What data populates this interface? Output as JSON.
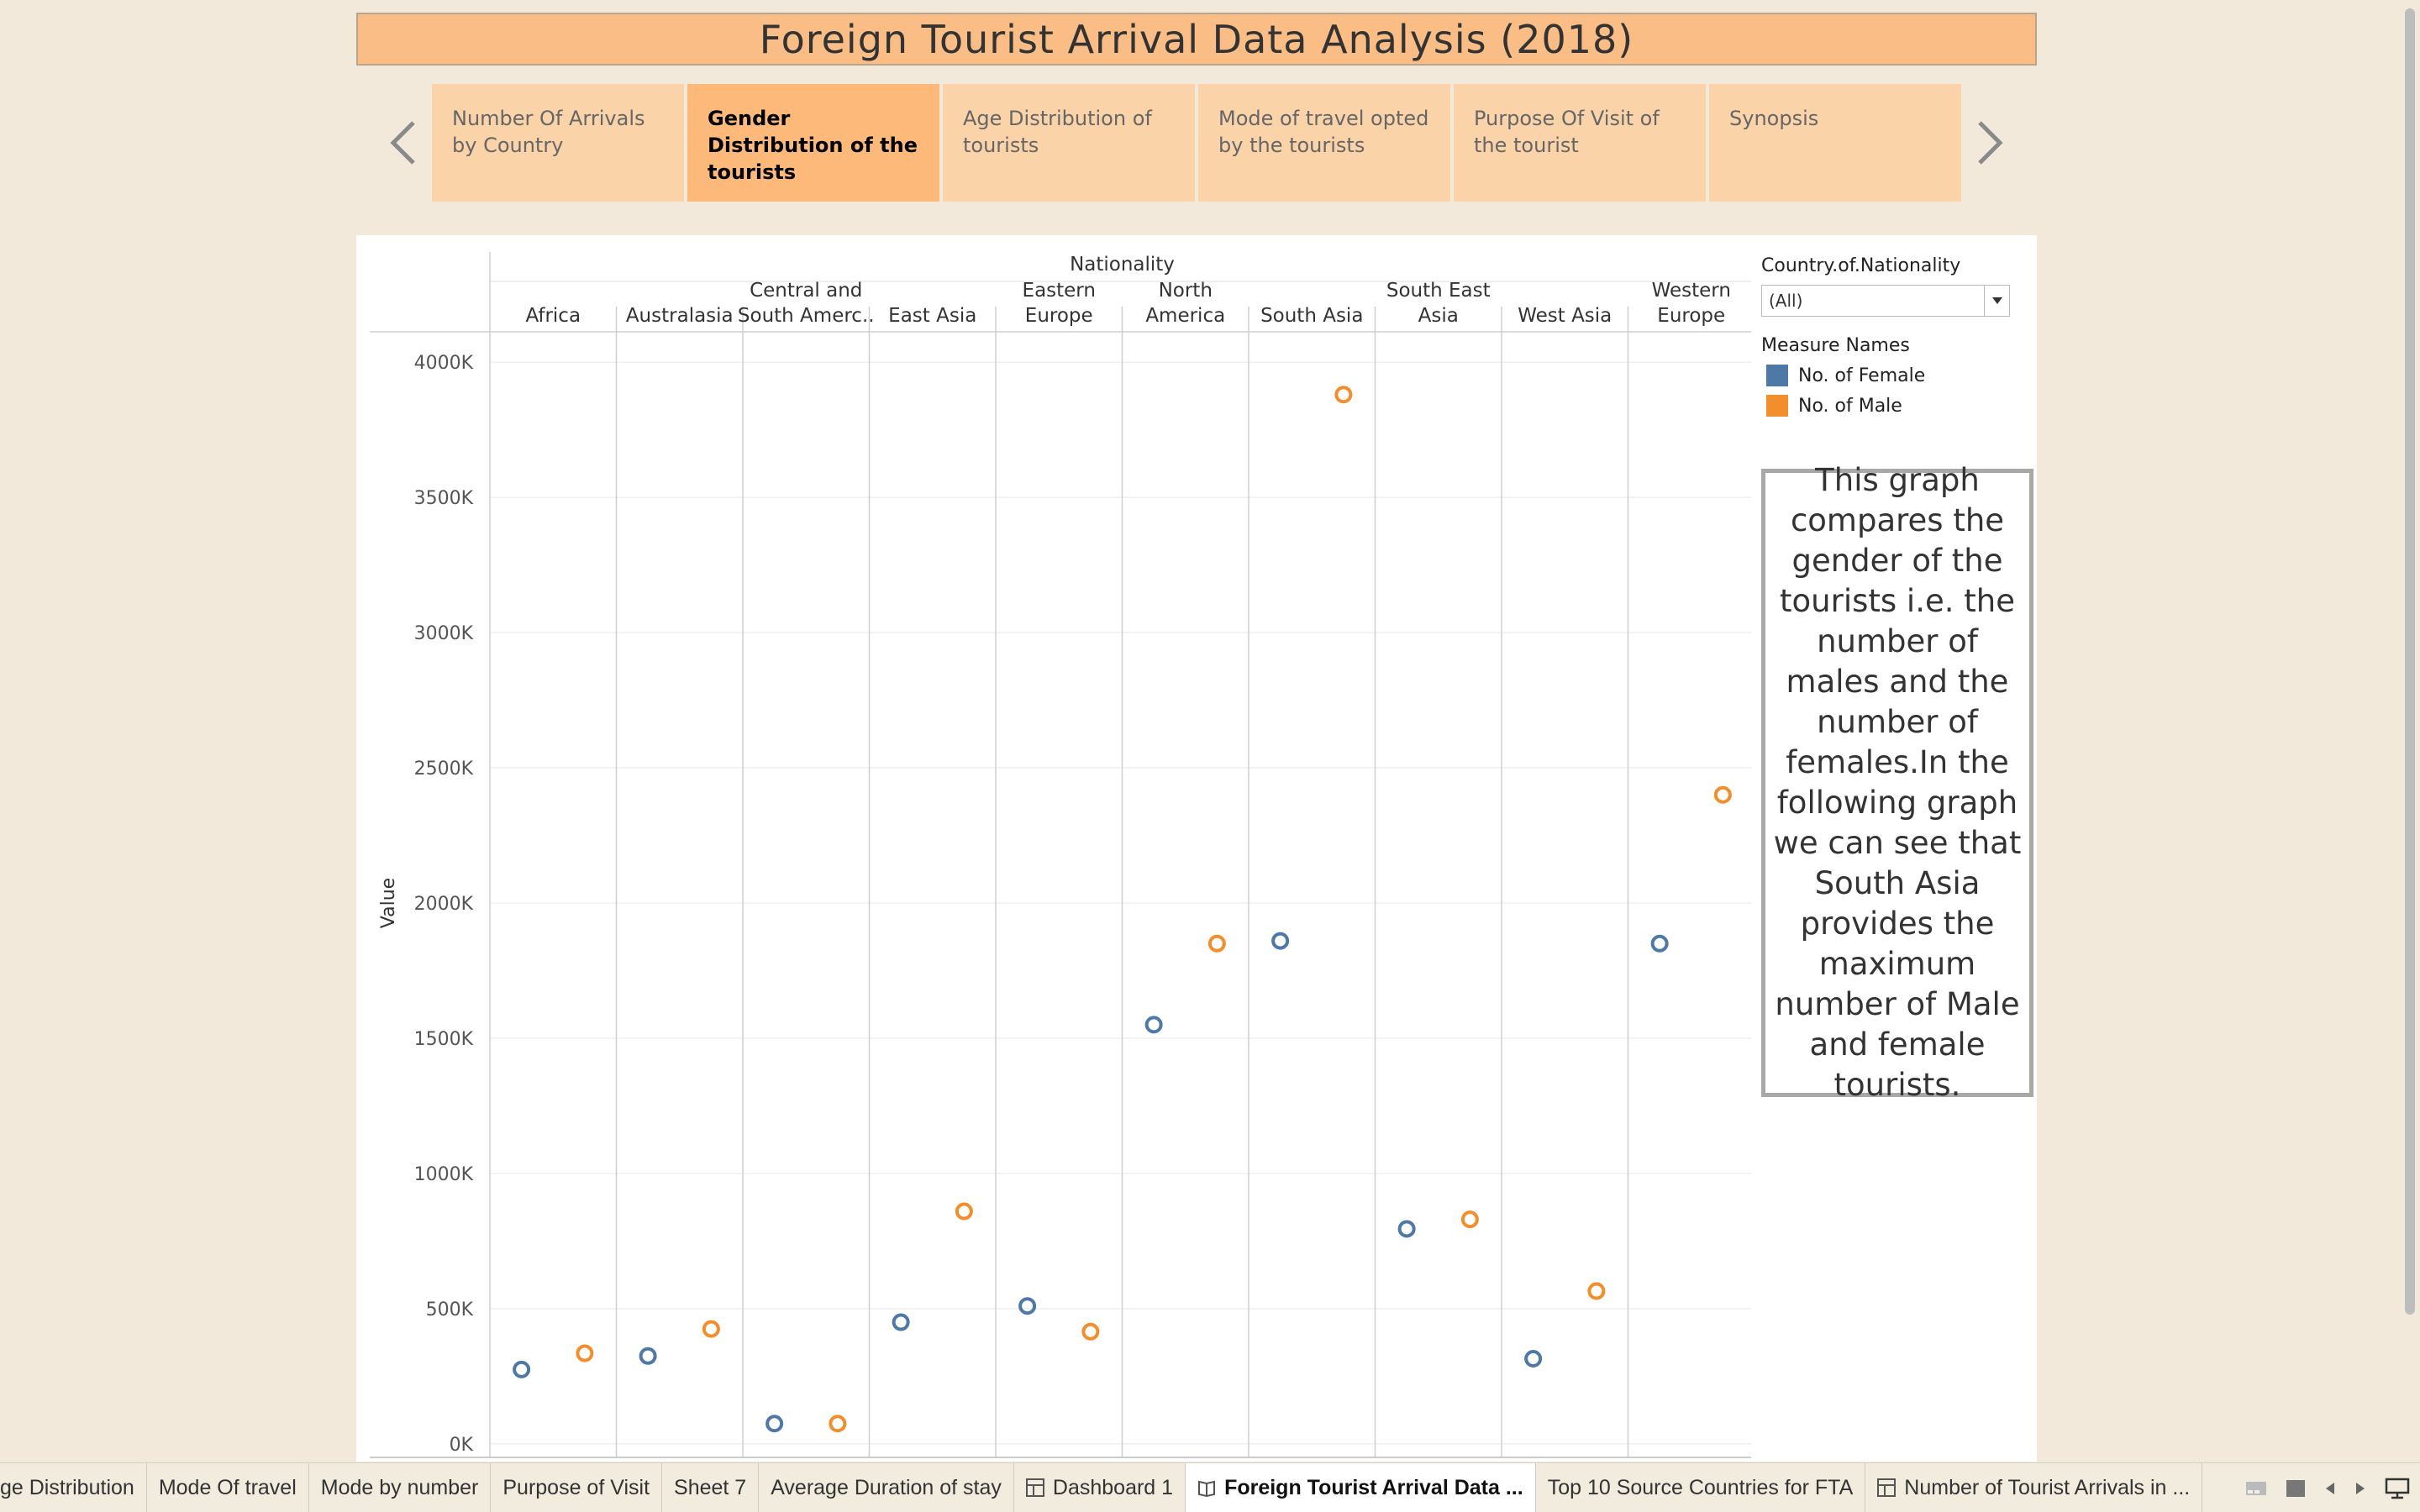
{
  "dashboard": {
    "title": "Foreign Tourist Arrival Data Analysis (2018)"
  },
  "story": {
    "prev_icon": "chevron-left-icon",
    "next_icon": "chevron-right-icon",
    "points": [
      {
        "label": "Number Of Arrivals by Country",
        "active": false
      },
      {
        "label": "Gender  Distribution of the tourists",
        "active": true
      },
      {
        "label": "Age Distribution of tourists",
        "active": false
      },
      {
        "label": "Mode of travel opted by the tourists",
        "active": false
      },
      {
        "label": "Purpose Of Visit of the tourist",
        "active": false
      },
      {
        "label": "Synopsis",
        "active": false
      }
    ]
  },
  "filter": {
    "title": "Country.of.Nationality",
    "selected": "(All)"
  },
  "legend": {
    "title": "Measure Names",
    "items": [
      {
        "label": "No. of Female",
        "color": "#4e79a7"
      },
      {
        "label": "No. of Male",
        "color": "#f28e2b"
      }
    ]
  },
  "note": {
    "text": "This graph compares the gender of the tourists i.e. the number of males and the number of females.In the following  graph we can see that South Asia provides the maximum number of Male and female tourists."
  },
  "chart_data": {
    "type": "scatter",
    "title": "",
    "column_header": "Nationality",
    "ylabel": "Value",
    "ylim": [
      -50,
      4050
    ],
    "y_ticks": [
      {
        "value": 4000,
        "label": "4000K"
      },
      {
        "value": 3500,
        "label": "3500K"
      },
      {
        "value": 3000,
        "label": "3000K"
      },
      {
        "value": 2500,
        "label": "2500K"
      },
      {
        "value": 2000,
        "label": "2000K"
      },
      {
        "value": 1500,
        "label": "1500K"
      },
      {
        "value": 1000,
        "label": "1000K"
      },
      {
        "value": 500,
        "label": "500K"
      },
      {
        "value": 0,
        "label": "0K"
      }
    ],
    "categories": [
      [
        "Africa"
      ],
      [
        "Australasia"
      ],
      [
        "Central and",
        "South Amerc.."
      ],
      [
        "East Asia"
      ],
      [
        "Eastern",
        "Europe"
      ],
      [
        "North",
        "America"
      ],
      [
        "South Asia"
      ],
      [
        "South East",
        "Asia"
      ],
      [
        "West Asia"
      ],
      [
        "Western",
        "Europe"
      ]
    ],
    "series": [
      {
        "name": "No. of Female",
        "color": "#4e79a7",
        "values": [
          275,
          325,
          75,
          450,
          510,
          1550,
          1860,
          795,
          315,
          1850
        ]
      },
      {
        "name": "No. of Male",
        "color": "#f28e2b",
        "values": [
          335,
          425,
          75,
          860,
          415,
          1850,
          3880,
          830,
          565,
          2400
        ]
      }
    ],
    "grid": true,
    "legend_position": "right"
  },
  "sheets": [
    {
      "label": "ge Distribution",
      "icon": "",
      "active": false
    },
    {
      "label": "Mode Of travel",
      "icon": "",
      "active": false
    },
    {
      "label": "Mode by number",
      "icon": "",
      "active": false
    },
    {
      "label": "Purpose of Visit",
      "icon": "",
      "active": false
    },
    {
      "label": "Sheet 7",
      "icon": "",
      "active": false
    },
    {
      "label": "Average Duration of stay",
      "icon": "",
      "active": false
    },
    {
      "label": "Dashboard 1",
      "icon": "dashboard-icon",
      "active": false
    },
    {
      "label": "Foreign Tourist Arrival Data ...",
      "icon": "story-icon",
      "active": true
    },
    {
      "label": "Top 10 Source Countries for FTA",
      "icon": "",
      "active": false
    },
    {
      "label": "Number of Tourist Arrivals in ...",
      "icon": "dashboard-icon",
      "active": false
    }
  ],
  "sheet_controls": [
    "filmstrip-icon",
    "tabs-icon",
    "previous-sheet-icon",
    "next-sheet-icon",
    "presentation-icon"
  ]
}
